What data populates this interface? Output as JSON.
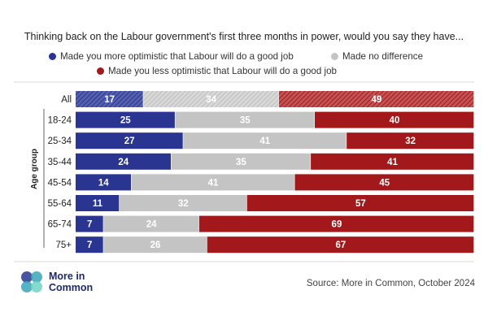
{
  "chart_data": {
    "type": "bar",
    "orientation": "horizontal",
    "stacked": true,
    "percent_scale": true,
    "title": "Thinking back on the Labour government's first three months in power, would you say they have...",
    "ylabel": "Age group",
    "categories": [
      "All",
      "18-24",
      "25-34",
      "35-44",
      "45-54",
      "55-64",
      "65-74",
      "75+"
    ],
    "series": [
      {
        "name": "Made you more optimistic that Labour will do a good job",
        "color": "#2a3591",
        "values": [
          17,
          25,
          27,
          24,
          14,
          11,
          7,
          7
        ]
      },
      {
        "name": "Made no difference",
        "color": "#c4c4c4",
        "values": [
          34,
          35,
          41,
          35,
          41,
          32,
          24,
          26
        ]
      },
      {
        "name": "Made you less optimistic that Labour will do a good job",
        "color": "#a3191b",
        "values": [
          49,
          40,
          32,
          41,
          45,
          57,
          69,
          67
        ]
      }
    ],
    "hatched_category": "All",
    "xlim": [
      0,
      100
    ],
    "legend_position": "top"
  },
  "brand": {
    "line1": "More in",
    "line2": "Common",
    "color": "#1f2a6b"
  },
  "source": "Source: More in Common, October 2024"
}
